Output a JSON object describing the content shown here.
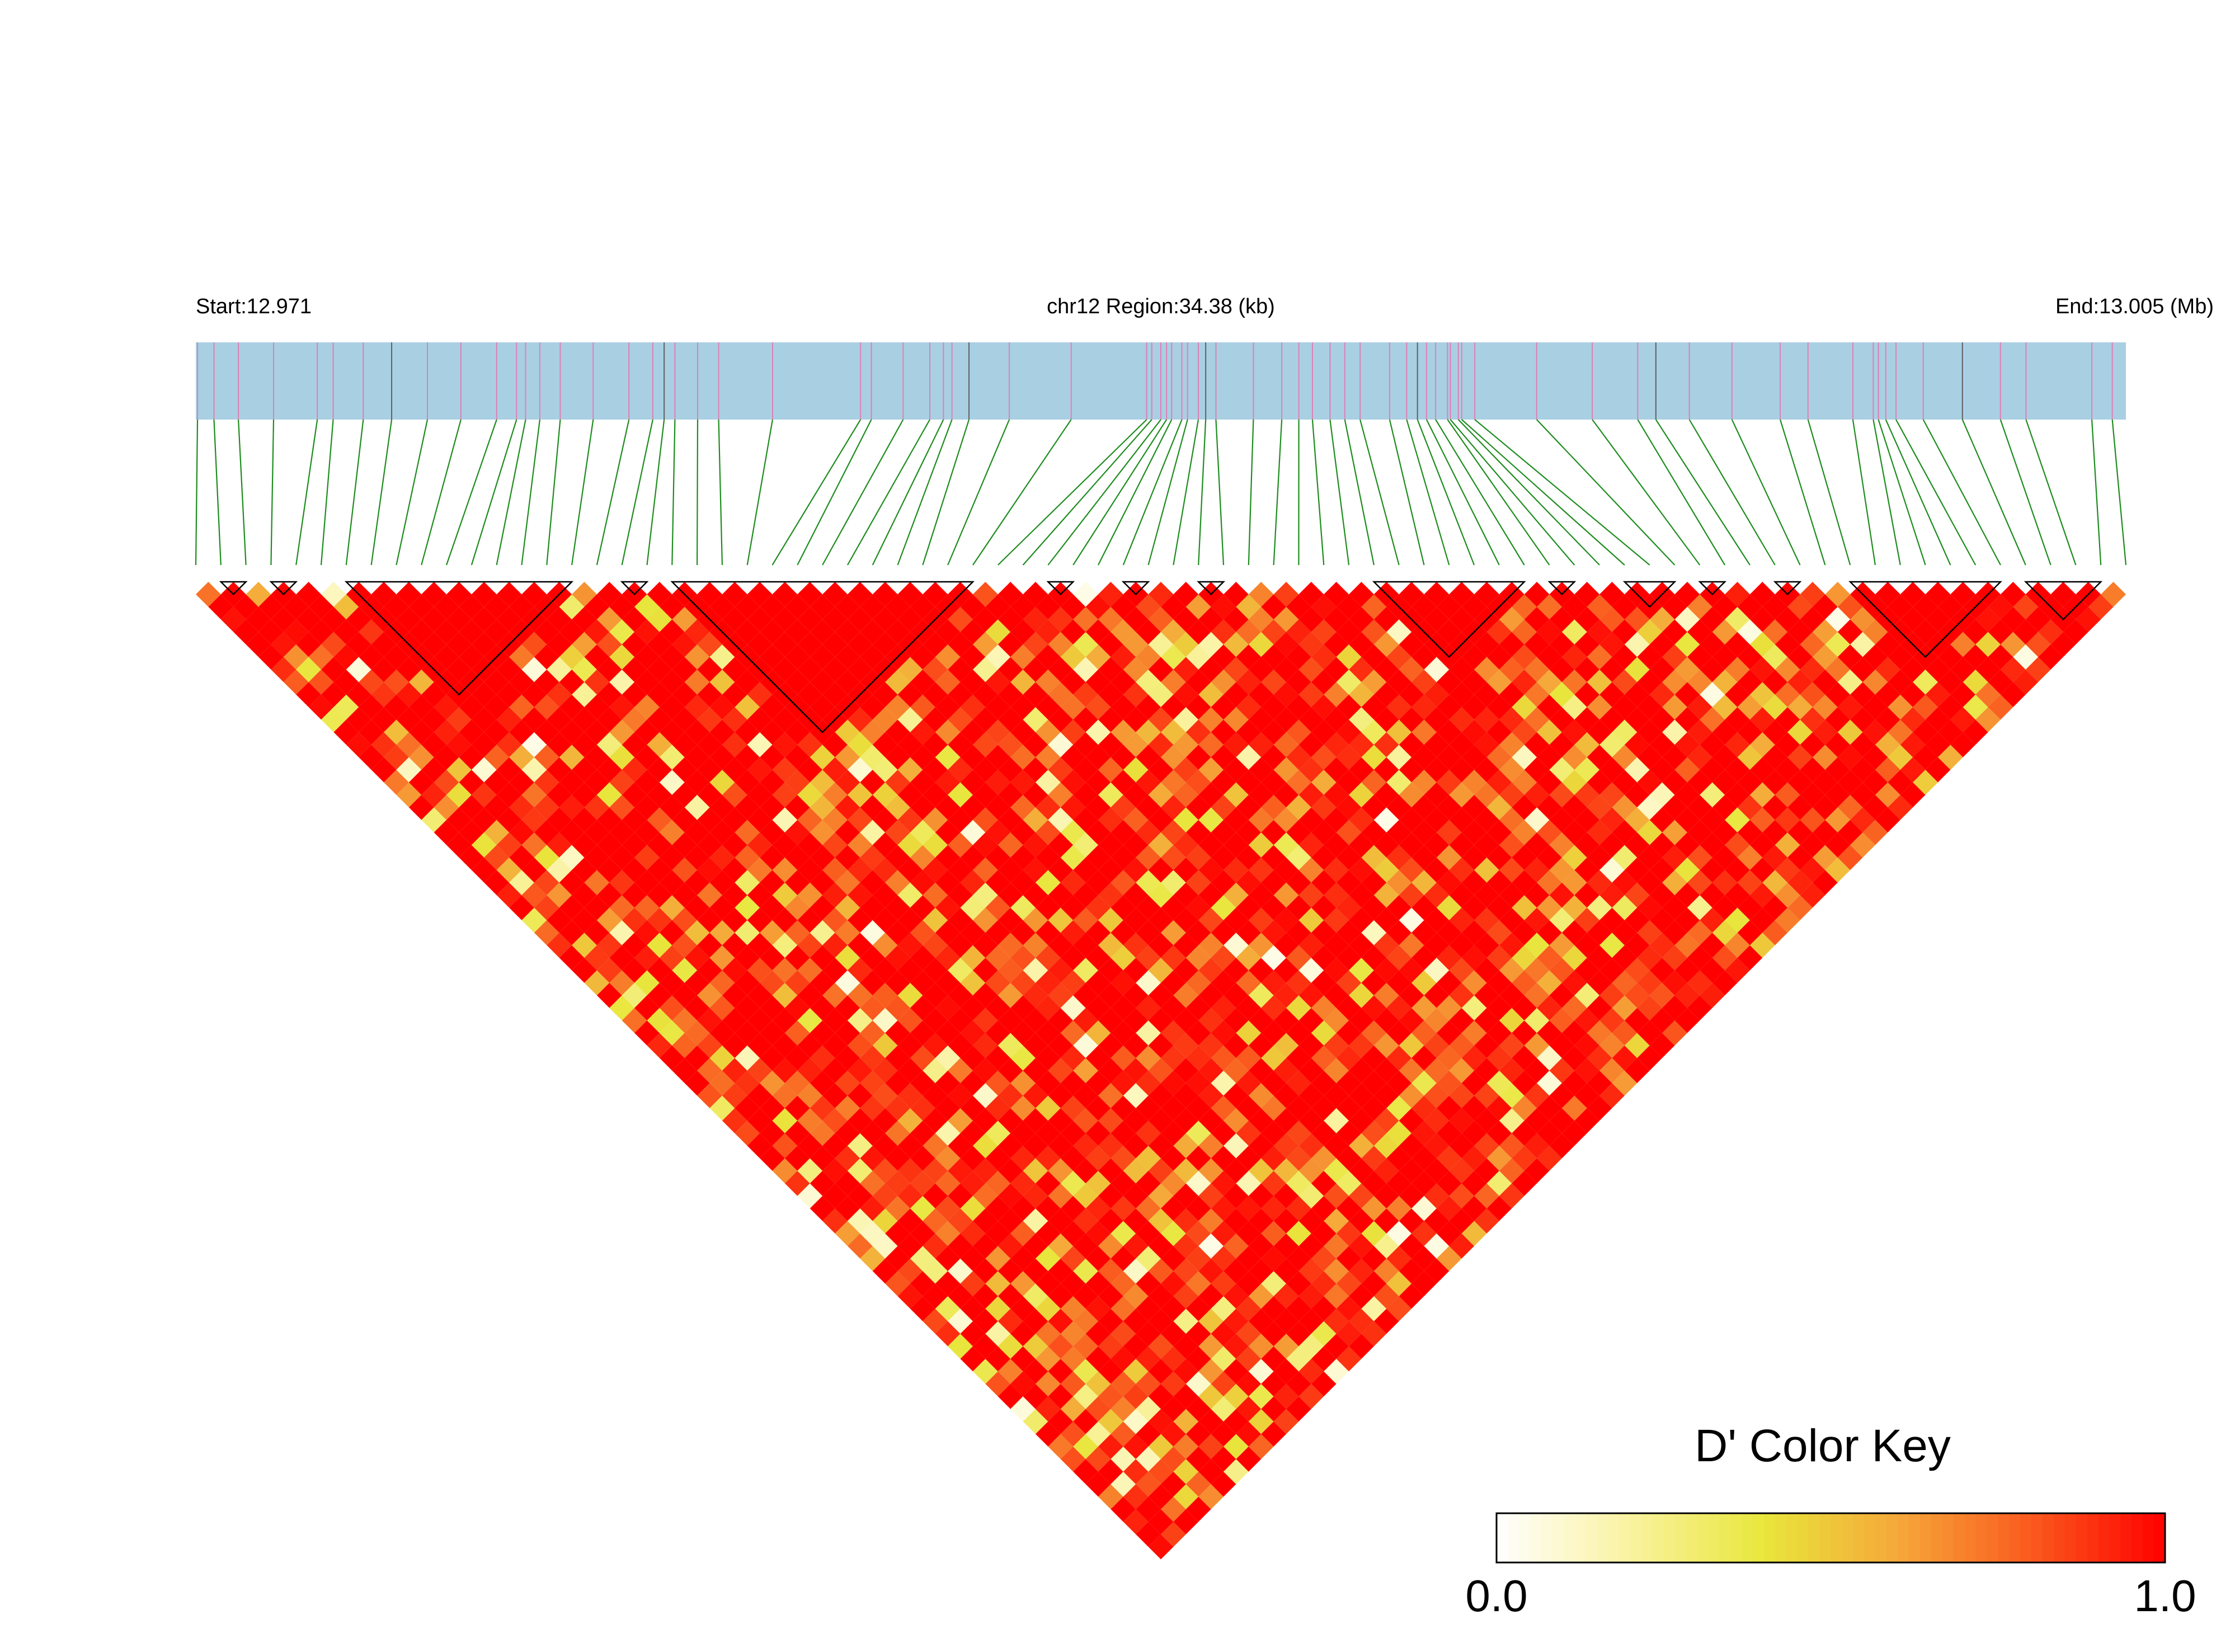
{
  "chart_data": {
    "type": "heatmap",
    "subtype": "linkage-disequilibrium",
    "region": {
      "start_label": "Start:12.971",
      "center_label": "chr12 Region:34.38 (kb)",
      "end_label": "End:13.005 (Mb)",
      "chromosome": "chr12",
      "start_mb": 12.971,
      "end_mb": 13.005,
      "length_kb": 34.38
    },
    "snp_count": 78,
    "snp_positions_mb": [
      12.97103,
      12.97132,
      12.97175,
      12.97237,
      12.97314,
      12.97342,
      12.97395,
      12.97445,
      12.97508,
      12.97567,
      12.9763,
      12.97665,
      12.97681,
      12.97706,
      12.97742,
      12.978,
      12.97863,
      12.97905,
      12.97925,
      12.97944,
      12.97984,
      12.98021,
      12.98116,
      12.98271,
      12.9829,
      12.98346,
      12.98393,
      12.98417,
      12.98432,
      12.98462,
      12.98533,
      12.98642,
      12.98775,
      12.98784,
      12.988,
      12.9881,
      12.98819,
      12.98837,
      12.98847,
      12.98866,
      12.98879,
      12.98897,
      12.98963,
      12.99013,
      12.99043,
      12.99067,
      12.99098,
      12.99124,
      12.99151,
      12.99203,
      12.99233,
      12.99252,
      12.99268,
      12.99284,
      12.99305,
      12.9931,
      12.99324,
      12.9933,
      12.99353,
      12.99462,
      12.9956,
      12.9964,
      12.99672,
      12.99731,
      12.99806,
      12.99891,
      12.9994,
      13.00019,
      13.00055,
      13.00064,
      13.00077,
      13.00095,
      13.00143,
      13.00212,
      13.00279,
      13.00324,
      13.0044,
      13.00476
    ],
    "haplotype_blocks": [
      [
        1,
        2
      ],
      [
        3,
        4
      ],
      [
        6,
        15
      ],
      [
        17,
        18
      ],
      [
        19,
        31
      ],
      [
        34,
        35
      ],
      [
        37,
        38
      ],
      [
        40,
        41
      ],
      [
        47,
        53
      ],
      [
        54,
        55
      ],
      [
        57,
        59
      ],
      [
        60,
        61
      ],
      [
        63,
        64
      ],
      [
        66,
        72
      ],
      [
        73,
        76
      ]
    ],
    "pairwise_dprime": "78 x 78 symmetric matrix of D' values in [0, 1], shown as lower triangle",
    "colorscale": {
      "min": 0.0,
      "max": 1.0,
      "min_label": "0.0",
      "max_label": "1.0",
      "colors": [
        "#ffffff",
        "#faf2a0",
        "#e8e63c",
        "#f5a83a",
        "#fa5a1e",
        "#ff0000"
      ]
    },
    "legend": {
      "title": "D' Color Key",
      "placement": "bottom-right"
    },
    "track_colors": {
      "band": "#a9cfe3",
      "snp_tick": "#e07fb4",
      "marker_tick": "#606060",
      "connector": "#1e8c1e"
    },
    "grid": false
  }
}
